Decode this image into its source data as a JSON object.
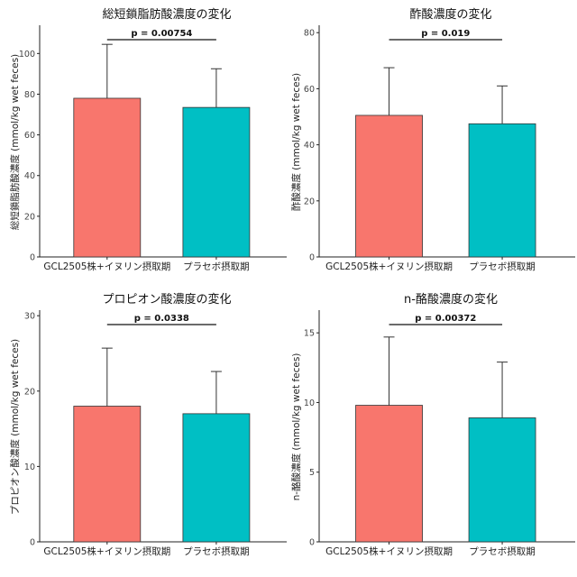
{
  "colors": {
    "bar1": "#f8766d",
    "bar2": "#00bfc4",
    "axis": "#222222",
    "error": "#333333"
  },
  "chart_data": [
    {
      "type": "bar",
      "title": "総短鎖脂肪酸濃度の変化",
      "ylabel": "総短鎖脂肪酸濃度 (mmol/kg wet feces)",
      "categories": [
        "GCL2505株+イヌリン摂取期",
        "プラセボ摂取期"
      ],
      "values": [
        78,
        73.5
      ],
      "errors": [
        26.5,
        19
      ],
      "ylim": [
        0,
        113
      ],
      "yticks": [
        0,
        20,
        40,
        60,
        80,
        100
      ],
      "pvalue": "p = 0.00754",
      "grid": false
    },
    {
      "type": "bar",
      "title": "酢酸濃度の変化",
      "ylabel": "酢酸濃度 (mmol/kg wet feces)",
      "categories": [
        "GCL2505株+イヌリン摂取期",
        "プラセボ摂取期"
      ],
      "values": [
        50.5,
        47.5
      ],
      "errors": [
        17,
        13.5
      ],
      "ylim": [
        0,
        82
      ],
      "yticks": [
        0,
        20,
        40,
        60,
        80
      ],
      "pvalue": "p = 0.019",
      "grid": false
    },
    {
      "type": "bar",
      "title": "プロピオン酸濃度の変化",
      "ylabel": "プロピオン酸濃度 (mmol/kg wet feces)",
      "categories": [
        "GCL2505株+イヌリン摂取期",
        "プラセボ摂取期"
      ],
      "values": [
        18,
        17
      ],
      "errors": [
        7.7,
        5.6
      ],
      "ylim": [
        0,
        30.5
      ],
      "yticks": [
        0,
        10,
        20,
        30
      ],
      "pvalue": "p = 0.0338",
      "grid": false
    },
    {
      "type": "bar",
      "title": "n-酪酸濃度の変化",
      "ylabel": "n-酪酸濃度 (mmol/kg wet feces)",
      "categories": [
        "GCL2505株+イヌリン摂取期",
        "プラセボ摂取期"
      ],
      "values": [
        9.8,
        8.9
      ],
      "errors": [
        4.9,
        4.0
      ],
      "ylim": [
        0,
        16.5
      ],
      "yticks": [
        0,
        5,
        10,
        15
      ],
      "pvalue": "p = 0.00372",
      "grid": false
    }
  ]
}
